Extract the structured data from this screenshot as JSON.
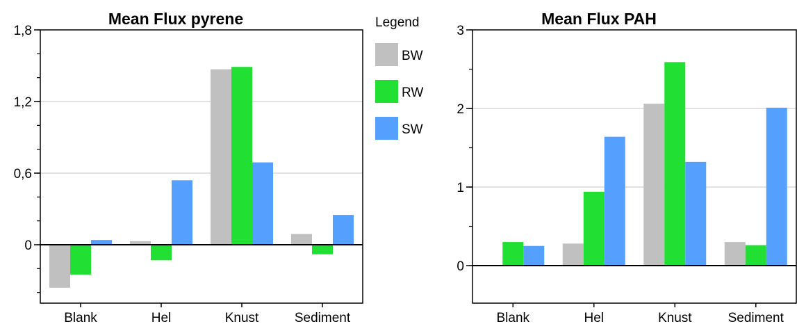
{
  "legend": {
    "title": "Legend",
    "items": [
      {
        "label": "BW",
        "color": "#c0c0c0"
      },
      {
        "label": "RW",
        "color": "#22e033"
      },
      {
        "label": "SW",
        "color": "#55a0ff"
      }
    ]
  },
  "chart_data": [
    {
      "type": "bar",
      "title": "Mean Flux pyrene",
      "xlabel": "",
      "ylabel": "",
      "categories": [
        "Blank",
        "Hel",
        "Knust",
        "Sediment"
      ],
      "yticks": [
        "1,8",
        "1,2",
        "0,6",
        "0"
      ],
      "ylim": [
        -0.5,
        1.8
      ],
      "grid": true,
      "series": [
        {
          "name": "BW",
          "values": [
            -0.36,
            0.03,
            1.47,
            0.09
          ]
        },
        {
          "name": "RW",
          "values": [
            -0.25,
            -0.13,
            1.49,
            -0.08
          ]
        },
        {
          "name": "SW",
          "values": [
            0.04,
            0.54,
            0.69,
            0.25
          ]
        }
      ]
    },
    {
      "type": "bar",
      "title": "Mean Flux PAH",
      "xlabel": "",
      "ylabel": "",
      "categories": [
        "Blank",
        "Hel",
        "Knust",
        "Sediment"
      ],
      "yticks": [
        "3",
        "2",
        "1",
        "0"
      ],
      "ylim": [
        -0.5,
        3
      ],
      "grid": true,
      "series": [
        {
          "name": "BW",
          "values": [
            0,
            0.28,
            2.06,
            0.3
          ]
        },
        {
          "name": "RW",
          "values": [
            0.3,
            0.94,
            2.59,
            0.26
          ]
        },
        {
          "name": "SW",
          "values": [
            0.25,
            1.64,
            1.32,
            2.01
          ]
        }
      ]
    }
  ]
}
